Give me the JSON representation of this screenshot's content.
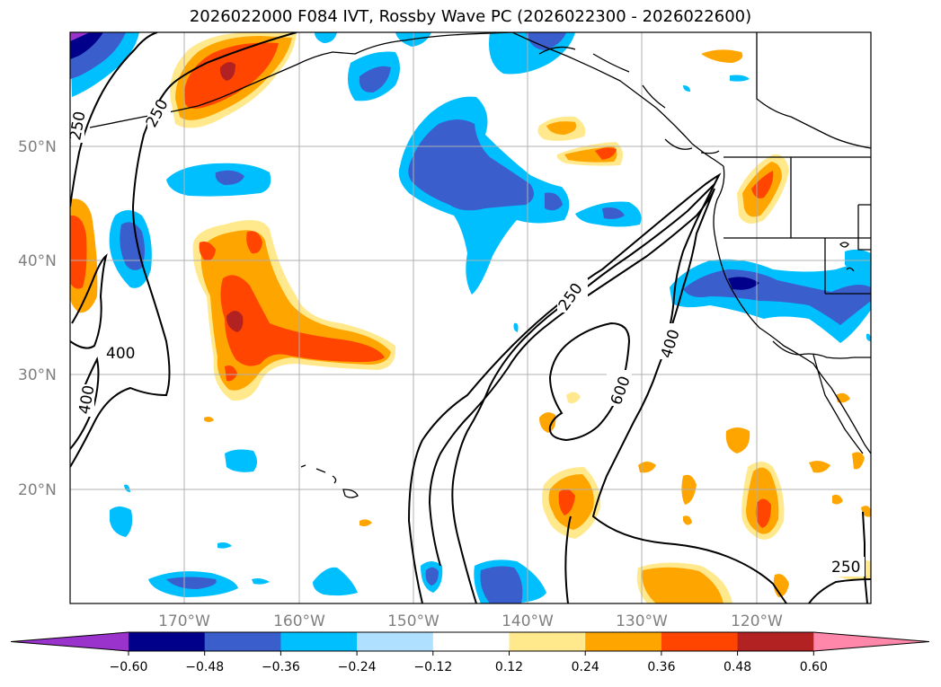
{
  "title": "2026022000 F084 IVT, Rossby Wave PC (2026022300 - 2026022600)",
  "lat_labels": [
    "50°N",
    "40°N",
    "30°N",
    "20°N"
  ],
  "lon_labels": [
    "170°W",
    "160°W",
    "150°W",
    "140°W",
    "130°W",
    "120°W"
  ],
  "contour_labels": {
    "c250_west": "250",
    "c250_nw": "250",
    "c400_west": "400",
    "c400_southwest": "400",
    "c250_center": "250",
    "c600": "600",
    "c400_east": "400",
    "c250_southeast": "250"
  },
  "colorbar": {
    "ticks": [
      "−0.60",
      "−0.48",
      "−0.36",
      "−0.24",
      "−0.12",
      "0.12",
      "0.24",
      "0.36",
      "0.48",
      "0.60"
    ],
    "colors": [
      "#9933cc",
      "#00008b",
      "#3a5fcd",
      "#00bfff",
      "#b0e0ff",
      "#ffffff",
      "#ffe98c",
      "#ffa500",
      "#ff4500",
      "#b22222",
      "#ff88aa"
    ]
  }
}
